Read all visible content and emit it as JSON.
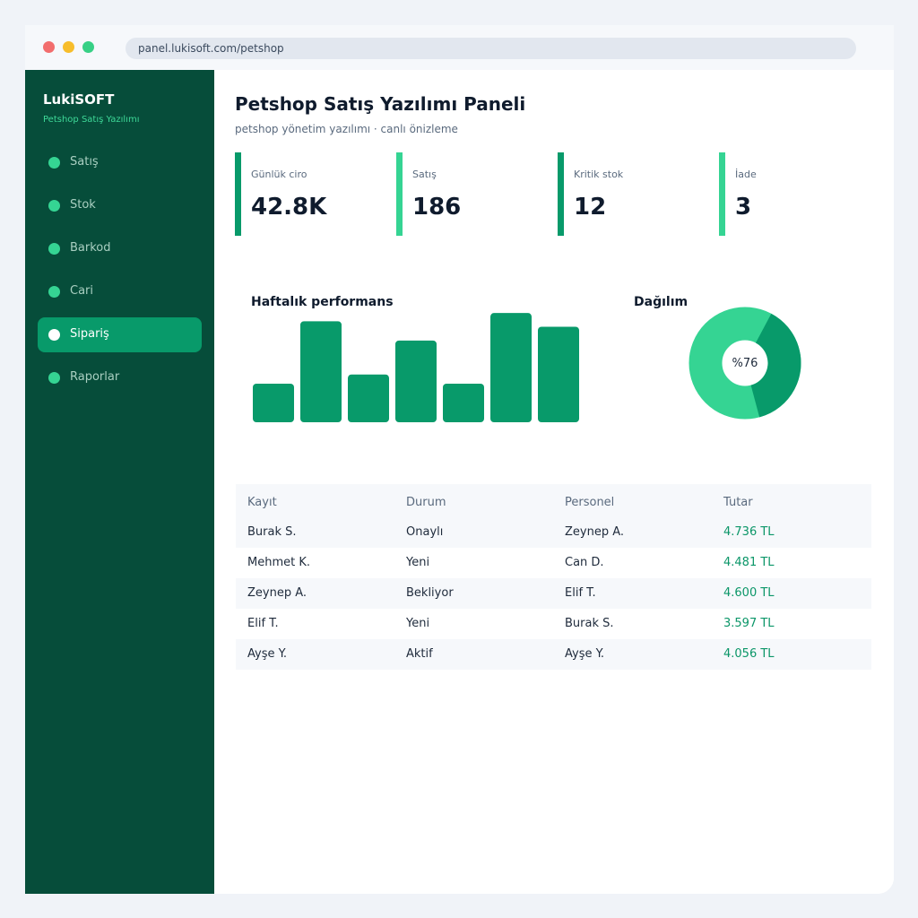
{
  "browser": {
    "url": "panel.lukisoft.com/petshop"
  },
  "sidebar": {
    "brand": "LukiSOFT",
    "brand_sub": "Petshop Satış Yazılımı",
    "items": [
      {
        "label": "Satış",
        "active": false
      },
      {
        "label": "Stok",
        "active": false
      },
      {
        "label": "Barkod",
        "active": false
      },
      {
        "label": "Cari",
        "active": false
      },
      {
        "label": "Sipariş",
        "active": true
      },
      {
        "label": "Raporlar",
        "active": false
      }
    ]
  },
  "header": {
    "title": "Petshop Satış Yazılımı Paneli",
    "subtitle": "petshop yönetim yazılımı · canlı önizleme"
  },
  "kpis": [
    {
      "label": "Günlük ciro",
      "value": "42.8K",
      "color": "#089a6a"
    },
    {
      "label": "Satış",
      "value": "186",
      "color": "#35d493"
    },
    {
      "label": "Kritik stok",
      "value": "12",
      "color": "#089a6a"
    },
    {
      "label": "İade",
      "value": "3",
      "color": "#35d493"
    }
  ],
  "performance": {
    "title": "Haftalık performans"
  },
  "distribution": {
    "title": "Dağılım",
    "label": "%76",
    "percent": 76,
    "colors": {
      "main": "#089a6a",
      "rest": "#35d493"
    }
  },
  "chart_data": {
    "type": "bar",
    "values": [
      42,
      110,
      52,
      89,
      42,
      119,
      104
    ],
    "ylim": [
      0,
      125
    ],
    "color": "#089a6a",
    "grid": false
  },
  "table": {
    "columns": [
      "Kayıt",
      "Durum",
      "Personel",
      "Tutar"
    ],
    "rows": [
      [
        "Burak S.",
        "Onaylı",
        "Zeynep A.",
        "4.736 TL"
      ],
      [
        "Mehmet K.",
        "Yeni",
        "Can D.",
        "4.481 TL"
      ],
      [
        "Zeynep A.",
        "Bekliyor",
        "Elif T.",
        "4.600 TL"
      ],
      [
        "Elif T.",
        "Yeni",
        "Burak S.",
        "3.597 TL"
      ],
      [
        "Ayşe Y.",
        "Aktif",
        "Ayşe Y.",
        "4.056 TL"
      ]
    ]
  }
}
